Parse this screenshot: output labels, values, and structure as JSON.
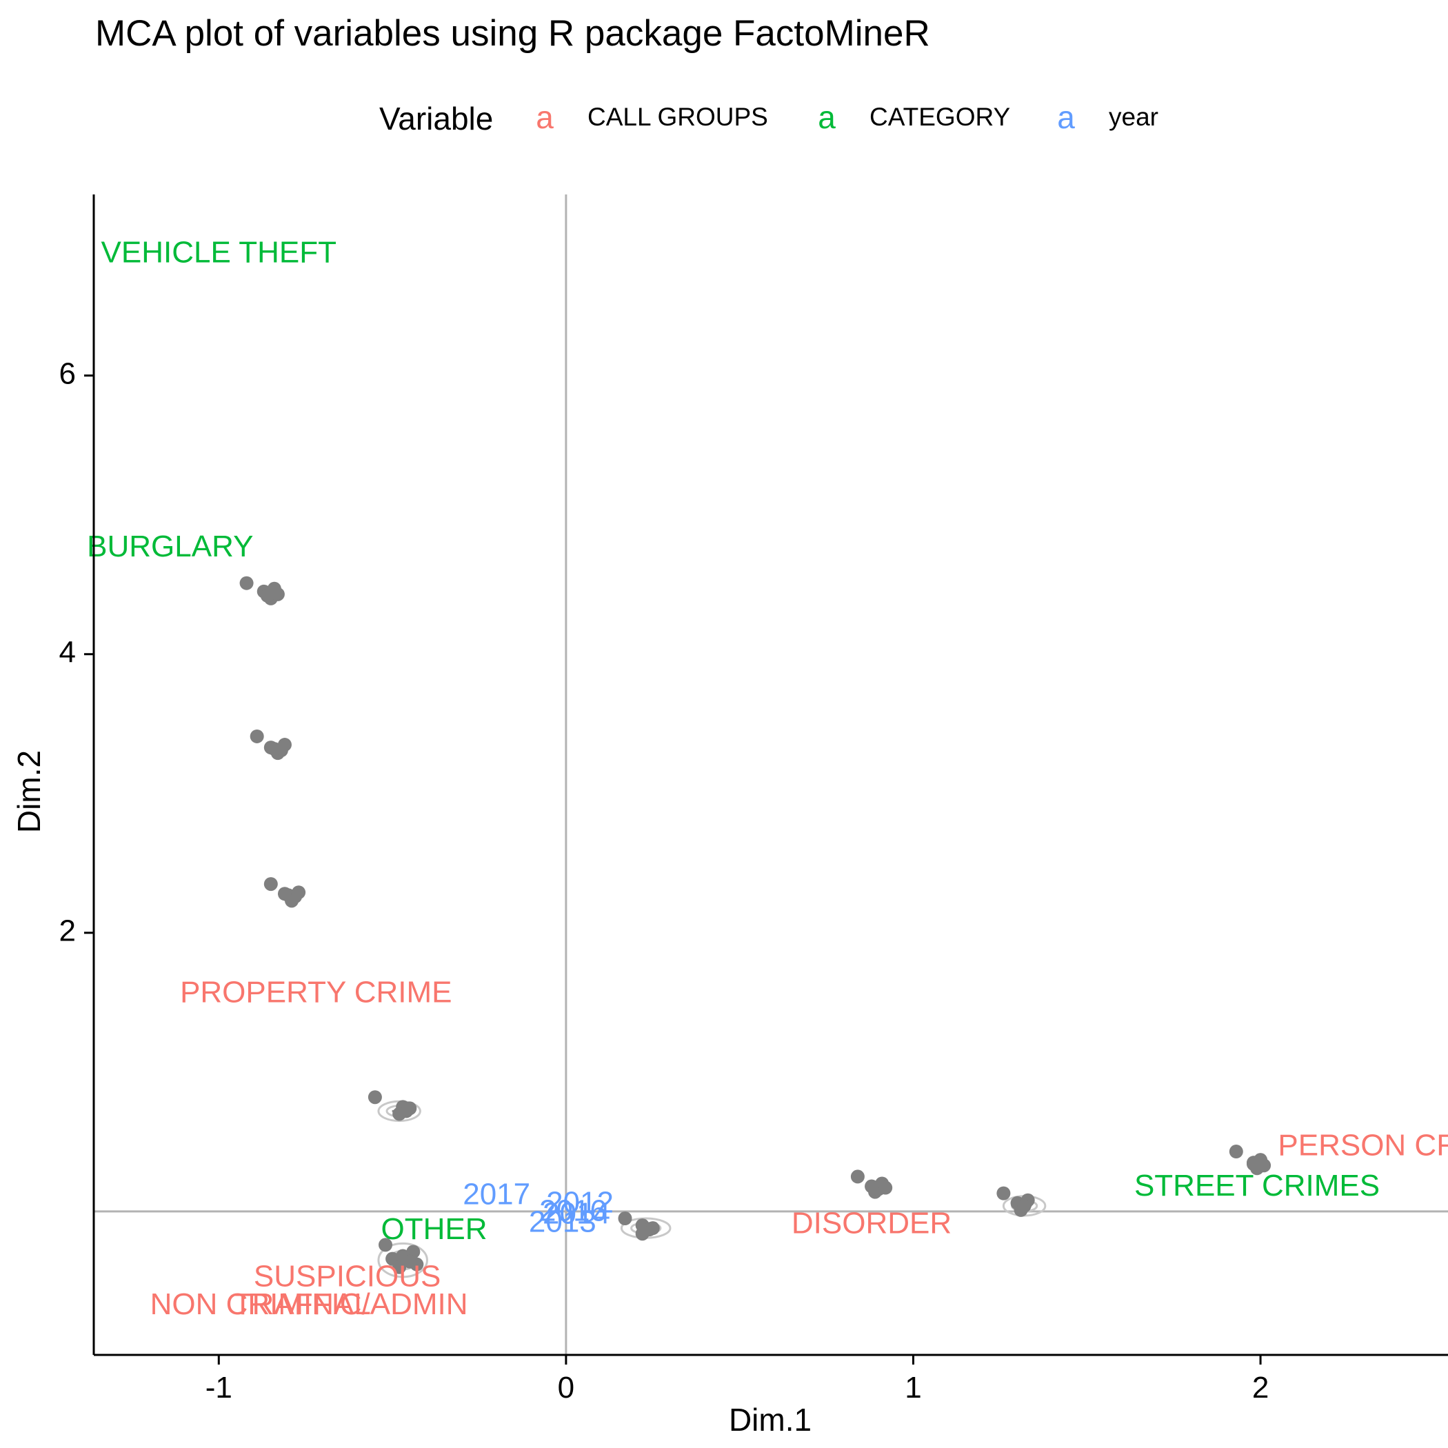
{
  "chart_data": {
    "type": "scatter",
    "title": "MCA plot of variables using R package FactoMineR",
    "xlabel": "Dim.1",
    "ylabel": "Dim.2",
    "xlim": [
      -1.36,
      2.54
    ],
    "ylim": [
      -1.03,
      7.3
    ],
    "grid": false,
    "reference_lines": {
      "x": 0,
      "y": 0
    },
    "xticks": [
      -1,
      0,
      1,
      2
    ],
    "yticks": [
      2,
      4,
      6
    ],
    "legend": {
      "title": "Variable",
      "position": "top",
      "key_glyph": "a",
      "entries": [
        {
          "name": "CALL GROUPS",
          "color": "#F8766D"
        },
        {
          "name": "CATEGORY",
          "color": "#00BA38"
        },
        {
          "name": "year",
          "color": "#619CFF"
        }
      ]
    },
    "point_color": "#7f7f7f",
    "ellipse_color": "#c8c8c8",
    "points": [
      [
        -0.92,
        4.51
      ],
      [
        -0.87,
        4.45
      ],
      [
        -0.85,
        4.4
      ],
      [
        -0.84,
        4.47
      ],
      [
        -0.83,
        4.43
      ],
      [
        -0.86,
        4.42
      ],
      [
        -0.89,
        3.41
      ],
      [
        -0.85,
        3.33
      ],
      [
        -0.83,
        3.29
      ],
      [
        -0.81,
        3.35
      ],
      [
        -0.82,
        3.31
      ],
      [
        -0.84,
        3.32
      ],
      [
        -0.85,
        2.35
      ],
      [
        -0.8,
        2.27
      ],
      [
        -0.79,
        2.23
      ],
      [
        -0.77,
        2.29
      ],
      [
        -0.78,
        2.26
      ],
      [
        -0.81,
        2.28
      ],
      [
        -0.55,
        0.82
      ],
      [
        -0.47,
        0.75
      ],
      [
        -0.46,
        0.72
      ],
      [
        -0.48,
        0.7
      ],
      [
        -0.45,
        0.74
      ],
      [
        -0.52,
        -0.24
      ],
      [
        -0.44,
        -0.29
      ],
      [
        -0.47,
        -0.32
      ],
      [
        -0.45,
        -0.36
      ],
      [
        -0.5,
        -0.34
      ],
      [
        -0.43,
        -0.38
      ],
      [
        -0.48,
        -0.4
      ],
      [
        0.17,
        -0.05
      ],
      [
        0.22,
        -0.1
      ],
      [
        0.24,
        -0.13
      ],
      [
        0.22,
        -0.16
      ],
      [
        0.25,
        -0.12
      ],
      [
        0.84,
        0.25
      ],
      [
        0.88,
        0.18
      ],
      [
        0.89,
        0.14
      ],
      [
        0.91,
        0.2
      ],
      [
        0.9,
        0.16
      ],
      [
        0.92,
        0.17
      ],
      [
        1.26,
        0.13
      ],
      [
        1.3,
        0.06
      ],
      [
        1.31,
        0.01
      ],
      [
        1.33,
        0.08
      ],
      [
        1.32,
        0.04
      ],
      [
        1.93,
        0.43
      ],
      [
        1.98,
        0.35
      ],
      [
        1.99,
        0.31
      ],
      [
        2.0,
        0.37
      ],
      [
        2.01,
        0.33
      ],
      [
        1.98,
        0.34
      ]
    ],
    "ellipses": [
      {
        "cx": -0.48,
        "cy": 0.72,
        "rx": 0.06,
        "ry": 0.07
      },
      {
        "cx": -0.47,
        "cy": -0.35,
        "rx": 0.07,
        "ry": 0.12
      },
      {
        "cx": 0.23,
        "cy": -0.12,
        "rx": 0.07,
        "ry": 0.07
      },
      {
        "cx": 1.32,
        "cy": 0.04,
        "rx": 0.06,
        "ry": 0.07
      }
    ],
    "labels": [
      {
        "text": "VEHICLE THEFT",
        "x": -1.0,
        "y": 6.87,
        "group": "CATEGORY"
      },
      {
        "text": "BURGLARY",
        "x": -1.14,
        "y": 4.76,
        "group": "CATEGORY"
      },
      {
        "text": "PROPERTY CRIME",
        "x": -0.72,
        "y": 1.56,
        "group": "CALL GROUPS"
      },
      {
        "text": "OTHER",
        "x": -0.38,
        "y": -0.14,
        "group": "CATEGORY"
      },
      {
        "text": "SUSPICIOUS",
        "x": -0.63,
        "y": -0.48,
        "group": "CALL GROUPS"
      },
      {
        "text": "NON CRIMINAL",
        "x": -0.88,
        "y": -0.68,
        "group": "CALL GROUPS"
      },
      {
        "text": "TRAFFIC/ADMIN",
        "x": -0.62,
        "y": -0.68,
        "group": "CALL GROUPS"
      },
      {
        "text": "2017",
        "x": -0.2,
        "y": 0.11,
        "group": "year"
      },
      {
        "text": "2012",
        "x": 0.04,
        "y": 0.05,
        "group": "year"
      },
      {
        "text": "2016",
        "x": 0.02,
        "y": -0.01,
        "group": "year"
      },
      {
        "text": "2014",
        "x": 0.03,
        "y": -0.03,
        "group": "year"
      },
      {
        "text": "2013",
        "x": -0.01,
        "y": -0.09,
        "group": "year"
      },
      {
        "text": "DISORDER",
        "x": 0.88,
        "y": -0.1,
        "group": "CALL GROUPS"
      },
      {
        "text": "STREET CRIMES",
        "x": 1.99,
        "y": 0.17,
        "group": "CATEGORY"
      },
      {
        "text": "PERSON CR",
        "x": 2.31,
        "y": 0.46,
        "group": "CALL GROUPS"
      }
    ]
  }
}
